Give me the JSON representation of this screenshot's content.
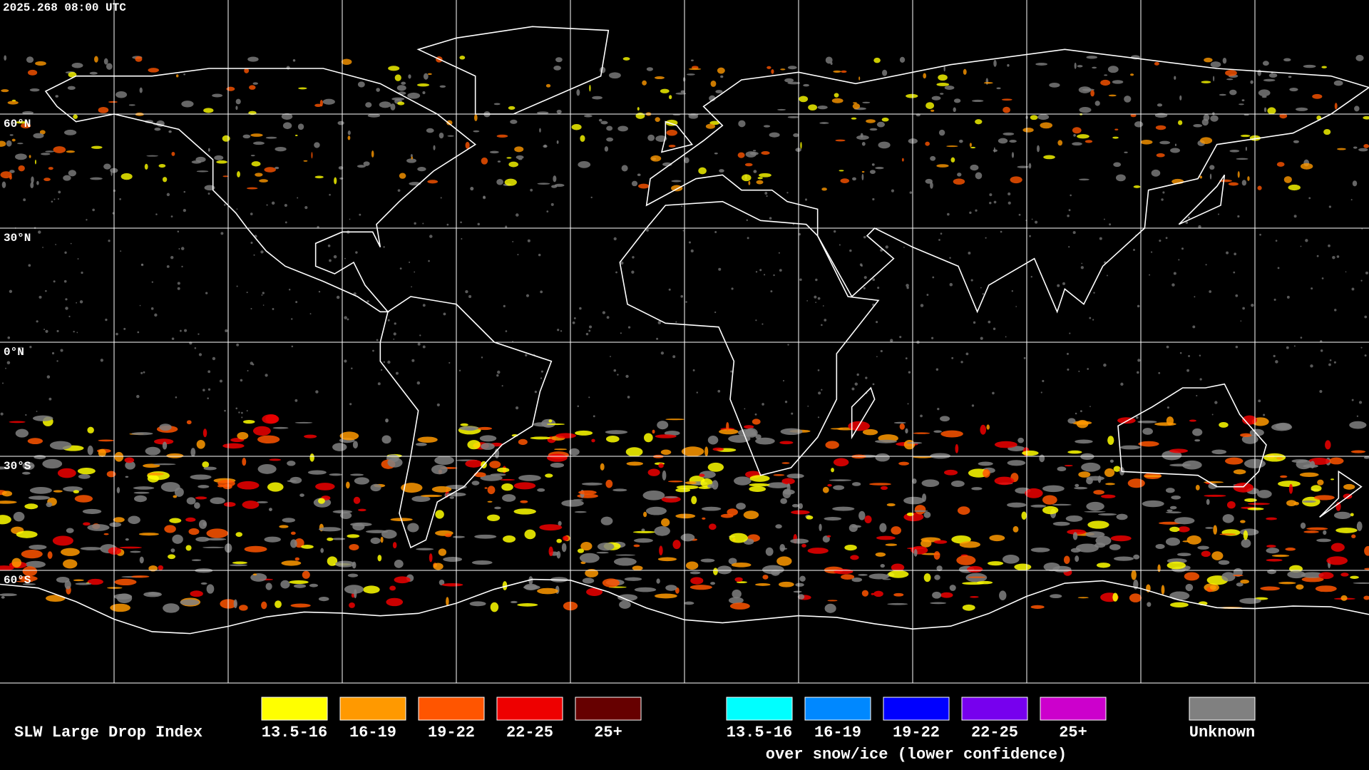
{
  "header": {
    "timestamp": "2025.268 08:00 UTC"
  },
  "map": {
    "latitude_labels": [
      "60°N",
      "30°N",
      "0°N",
      "30°S",
      "60°S"
    ]
  },
  "legend": {
    "title": "SLW Large Drop Index",
    "groups": [
      {
        "items": [
          {
            "label": "13.5-16",
            "color": "#ffff00"
          },
          {
            "label": "16-19",
            "color": "#ff9900"
          },
          {
            "label": "19-22",
            "color": "#ff5500"
          },
          {
            "label": "22-25",
            "color": "#ee0000"
          },
          {
            "label": "25+",
            "color": "#660000"
          }
        ]
      },
      {
        "items": [
          {
            "label": "13.5-16",
            "color": "#00ffff"
          },
          {
            "label": "16-19",
            "color": "#0088ff"
          },
          {
            "label": "19-22",
            "color": "#0000ff"
          },
          {
            "label": "22-25",
            "color": "#7700ee"
          },
          {
            "label": "25+",
            "color": "#cc00cc"
          }
        ],
        "caption": "over snow/ice (lower confidence)"
      }
    ],
    "unknown": {
      "label": "Unknown",
      "color": "#808080"
    }
  }
}
